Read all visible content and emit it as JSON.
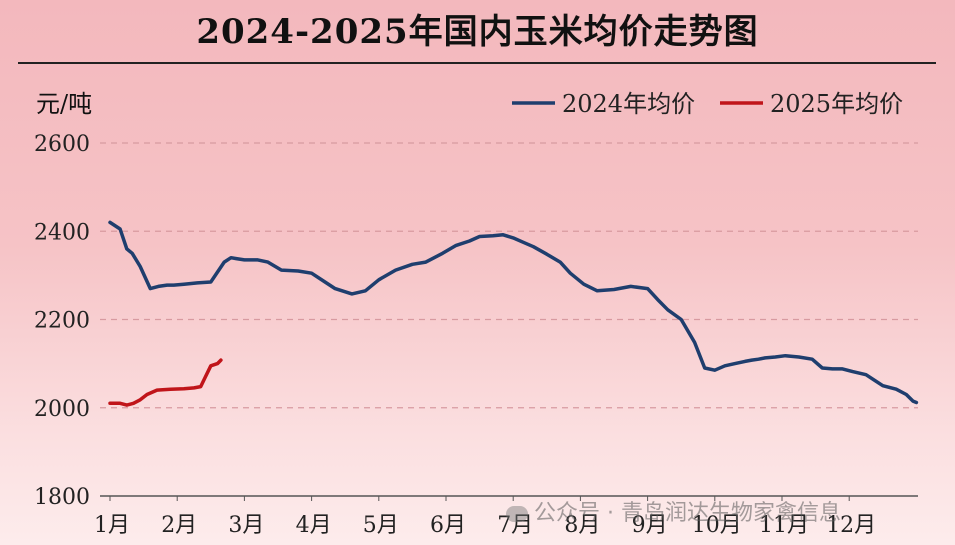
{
  "chart_data": {
    "type": "line",
    "title": "2024-2025年国内玉米均价走势图",
    "ylabel": "元/吨",
    "ylim": [
      1800,
      2600
    ],
    "yticks": [
      1800,
      2000,
      2200,
      2400,
      2600
    ],
    "xlim": [
      0,
      12
    ],
    "xticks": [
      "1月",
      "2月",
      "3月",
      "4月",
      "5月",
      "6月",
      "7月",
      "8月",
      "9月",
      "10月",
      "11月",
      "12月"
    ],
    "grid": "horizontal dashed",
    "legend": "top-right",
    "series": [
      {
        "name": "2024年均价",
        "color": "#1f3e6e",
        "x": [
          0.0,
          0.15,
          0.25,
          0.33,
          0.45,
          0.6,
          0.72,
          0.85,
          0.95,
          1.1,
          1.3,
          1.5,
          1.7,
          1.8,
          1.88,
          2.0,
          2.2,
          2.35,
          2.55,
          2.8,
          3.0,
          3.2,
          3.35,
          3.6,
          3.8,
          4.0,
          4.25,
          4.5,
          4.7,
          4.95,
          5.15,
          5.35,
          5.5,
          5.7,
          5.85,
          6.0,
          6.15,
          6.3,
          6.5,
          6.7,
          6.85,
          7.05,
          7.25,
          7.5,
          7.75,
          8.0,
          8.15,
          8.3,
          8.5,
          8.7,
          8.85,
          9.0,
          9.15,
          9.3,
          9.45,
          9.55,
          9.65,
          9.75,
          9.9,
          10.05,
          10.25,
          10.45,
          10.6,
          10.75,
          10.9,
          11.05,
          11.25,
          11.5,
          11.7,
          11.85,
          11.95,
          12.0
        ],
        "values": [
          2420,
          2405,
          2360,
          2350,
          2320,
          2270,
          2275,
          2278,
          2278,
          2280,
          2283,
          2285,
          2330,
          2340,
          2338,
          2335,
          2335,
          2330,
          2312,
          2310,
          2305,
          2285,
          2270,
          2258,
          2265,
          2290,
          2312,
          2325,
          2330,
          2350,
          2368,
          2378,
          2388,
          2390,
          2392,
          2385,
          2375,
          2365,
          2348,
          2330,
          2305,
          2280,
          2265,
          2268,
          2275,
          2270,
          2245,
          2222,
          2200,
          2148,
          2090,
          2085,
          2095,
          2100,
          2105,
          2108,
          2110,
          2113,
          2115,
          2118,
          2115,
          2110,
          2090,
          2088,
          2088,
          2082,
          2075,
          2050,
          2042,
          2030,
          2015,
          2012
        ],
        "x_range_note": ""
      },
      {
        "name": "2025年均价",
        "color": "#c0151a",
        "x": [
          0.0,
          0.15,
          0.25,
          0.35,
          0.45,
          0.55,
          0.7,
          0.9,
          1.1,
          1.25,
          1.35,
          1.42,
          1.5,
          1.6,
          1.65
        ],
        "values": [
          2010,
          2010,
          2006,
          2010,
          2018,
          2030,
          2040,
          2042,
          2043,
          2045,
          2048,
          2070,
          2095,
          2100,
          2108
        ]
      }
    ]
  },
  "watermark": {
    "text": "公众号 · 青岛润达生物家禽信息"
  }
}
